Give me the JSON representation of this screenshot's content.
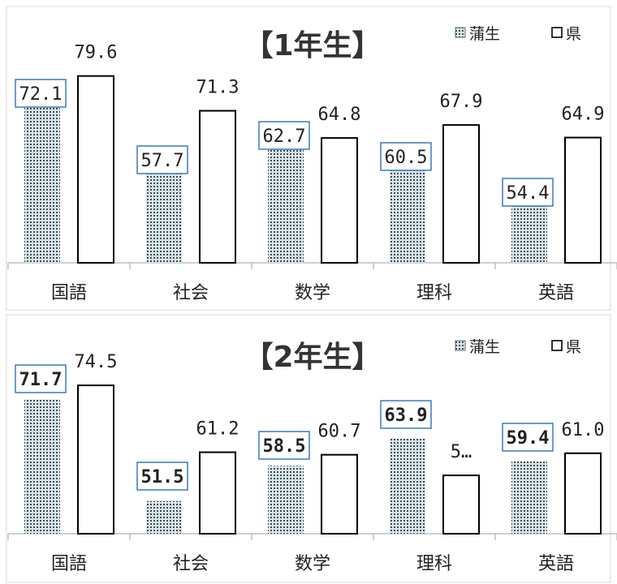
{
  "chart_data": [
    {
      "type": "bar",
      "title": "【1年生】",
      "categories": [
        "国語",
        "社会",
        "数学",
        "理科",
        "英語"
      ],
      "series": [
        {
          "name": "蒲生",
          "values": [
            72.1,
            57.7,
            62.7,
            60.5,
            54.4
          ],
          "labels": [
            "72.1",
            "57.7",
            "62.7",
            "60.5",
            "54.4"
          ]
        },
        {
          "name": "県",
          "values": [
            79.6,
            71.3,
            64.8,
            67.9,
            64.9
          ],
          "labels": [
            "79.6",
            "71.3",
            "64.8",
            "67.9",
            "64.9"
          ]
        }
      ],
      "ylim": [
        35,
        90
      ],
      "grid": false,
      "legend": "top-right"
    },
    {
      "type": "bar",
      "title": "【2年生】",
      "categories": [
        "国語",
        "社会",
        "数学",
        "理科",
        "英語"
      ],
      "series": [
        {
          "name": "蒲生",
          "values": [
            71.7,
            51.5,
            58.5,
            63.9,
            59.4
          ],
          "labels": [
            "71.7",
            "51.5",
            "58.5",
            "63.9",
            "59.4"
          ]
        },
        {
          "name": "県",
          "values": [
            74.5,
            61.2,
            60.7,
            56.6,
            61.0
          ],
          "labels": [
            "74.5",
            "61.2",
            "60.7",
            "5…",
            "61.0"
          ]
        }
      ],
      "ylim": [
        45,
        85
      ],
      "grid": false,
      "legend": "top-right"
    }
  ],
  "colors": {
    "local_fill": "#dbe6ea",
    "local_dot": "#3e4f57",
    "box_border": "#3c78c0",
    "axis": "#bfbfbf"
  }
}
